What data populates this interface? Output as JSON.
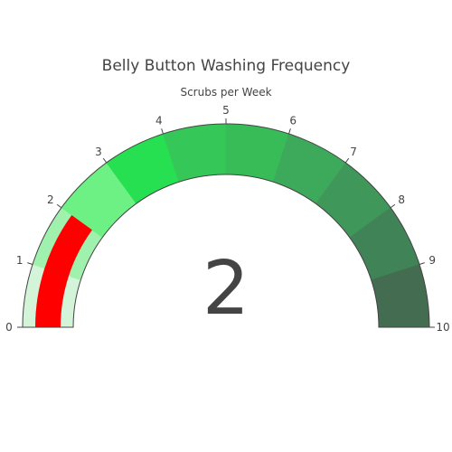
{
  "chart_data": {
    "type": "gauge",
    "title": "Belly Button Washing Frequency",
    "subtitle": "Scrubs per Week",
    "value": 2,
    "value_label": "2",
    "range": [
      0,
      10
    ],
    "ticks": [
      0,
      1,
      2,
      3,
      4,
      5,
      6,
      7,
      8,
      9,
      10
    ],
    "tick_labels": [
      "0",
      "1",
      "2",
      "3",
      "4",
      "5",
      "6",
      "7",
      "8",
      "9",
      "10"
    ],
    "steps": [
      {
        "range": [
          0,
          1
        ],
        "color": "#d3f4d9"
      },
      {
        "range": [
          1,
          2
        ],
        "color": "#a0f0ae"
      },
      {
        "range": [
          2,
          3
        ],
        "color": "#6df184"
      },
      {
        "range": [
          3,
          4
        ],
        "color": "#26e051"
      },
      {
        "range": [
          4,
          5
        ],
        "color": "#35c758"
      },
      {
        "range": [
          5,
          6
        ],
        "color": "#38bc58"
      },
      {
        "range": [
          6,
          7
        ],
        "color": "#3da95a"
      },
      {
        "range": [
          7,
          8
        ],
        "color": "#3f9759"
      },
      {
        "range": [
          8,
          9
        ],
        "color": "#3f8356"
      },
      {
        "range": [
          9,
          10
        ],
        "color": "#446c50"
      }
    ],
    "bar_color": "#ff0000",
    "text_color": "#444444"
  }
}
